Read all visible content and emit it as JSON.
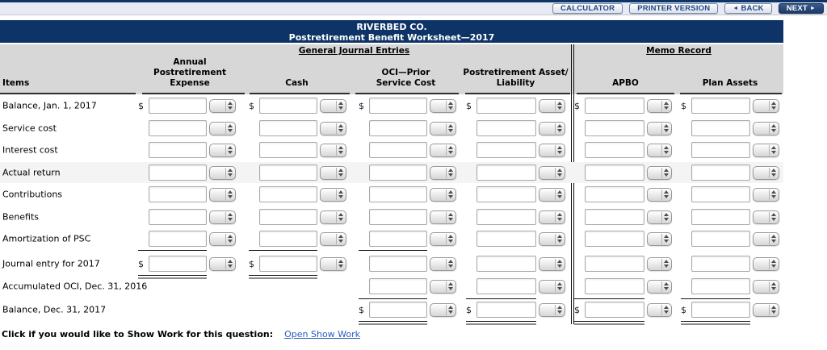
{
  "currency": "$",
  "toolbar": {
    "calculator_label": "CALCULATOR",
    "printer_label": "PRINTER VERSION",
    "back_label": "BACK",
    "back_arrow": "◄",
    "next_label": "NEXT",
    "next_arrow": "►"
  },
  "title": {
    "line1": "RIVERBED CO.",
    "line2": "Postretirement Benefit Worksheet—2017"
  },
  "table": {
    "group_general": "General Journal Entries",
    "group_memo": "Memo Record",
    "col_items": "Items",
    "col_expense": "Annual\nPostretirement\nExpense",
    "col_cash": "Cash",
    "col_oci": "OCI—Prior\nService Cost",
    "col_asset": "Postretirement Asset/\nLiability",
    "col_apbo": "APBO",
    "col_plan": "Plan Assets",
    "rows": [
      {
        "label": "Balance, Jan. 1, 2017",
        "cells": [
          "d",
          "d",
          "d",
          "d",
          "d",
          "d"
        ]
      },
      {
        "label": "Service cost",
        "cells": [
          "i",
          "i",
          "i",
          "i",
          "i",
          "i"
        ]
      },
      {
        "label": "Interest cost",
        "cells": [
          "i",
          "i",
          "i",
          "i",
          "i",
          "i"
        ]
      },
      {
        "label": "Actual return",
        "cells": [
          "i",
          "i",
          "i",
          "i",
          "i",
          "i"
        ]
      },
      {
        "label": "Contributions",
        "cells": [
          "i",
          "i",
          "i",
          "i",
          "i",
          "i"
        ]
      },
      {
        "label": "Benefits",
        "cells": [
          "i",
          "i",
          "i",
          "i",
          "i",
          "i"
        ]
      },
      {
        "label": "Amortization of PSC",
        "cells": [
          "i",
          "i",
          "i",
          "i",
          "i",
          "i"
        ]
      },
      {
        "label": "Journal entry for 2017",
        "cells": [
          "d",
          "d",
          "i",
          "i",
          "i",
          "i"
        ]
      },
      {
        "label": "Accumulated OCI, Dec. 31, 2016",
        "cells": [
          "n",
          "n",
          "i",
          "i",
          "i",
          "i"
        ]
      },
      {
        "label": "Balance, Dec. 31, 2017",
        "cells": [
          "n",
          "n",
          "d",
          "d",
          "d",
          "d"
        ]
      }
    ]
  },
  "footer": {
    "prompt": "Click if you would like to Show Work for this question:",
    "link_label": "Open Show Work"
  }
}
